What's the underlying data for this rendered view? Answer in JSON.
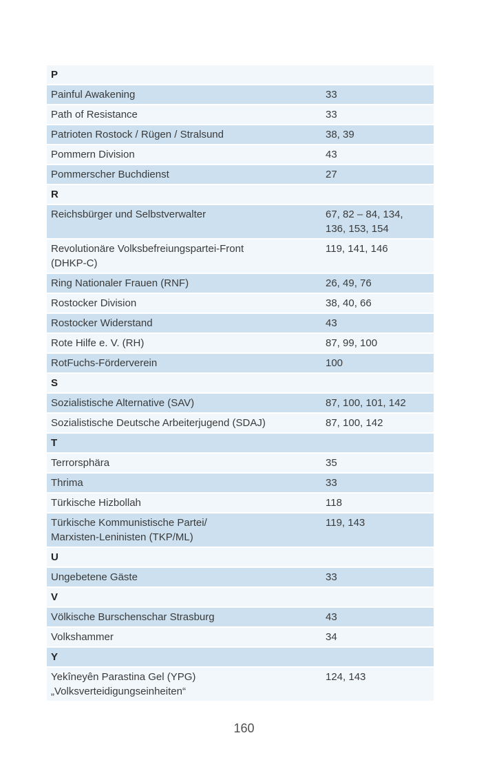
{
  "page": {
    "page_number": "160"
  },
  "colors": {
    "row_blue": "#cce0ef",
    "row_light": "#f2f7fb",
    "text": "#3a3a3a"
  },
  "index": {
    "sections": [
      {
        "letter": "P",
        "entries": [
          {
            "name": "Painful Awakening",
            "pages": "33"
          },
          {
            "name": "Path of Resistance",
            "pages": "33"
          },
          {
            "name": "Patrioten Rostock / Rügen / Stralsund",
            "pages": "38, 39"
          },
          {
            "name": "Pommern Division",
            "pages": "43"
          },
          {
            "name": "Pommerscher Buchdienst",
            "pages": "27"
          }
        ]
      },
      {
        "letter": "R",
        "entries": [
          {
            "name": "Reichsbürger und Selbstverwalter",
            "pages": "67, 82 – 84, 134,\n136, 153, 154"
          },
          {
            "name": "Revolutionäre Volksbefreiungspartei-Front\n(DHKP-C)",
            "pages": "119, 141, 146"
          },
          {
            "name": "Ring Nationaler Frauen (RNF)",
            "pages": "26, 49, 76"
          },
          {
            "name": "Rostocker Division",
            "pages": "38, 40, 66"
          },
          {
            "name": "Rostocker Widerstand",
            "pages": "43"
          },
          {
            "name": "Rote Hilfe e. V. (RH)",
            "pages": "87, 99, 100"
          },
          {
            "name": "RotFuchs-Förderverein",
            "pages": "100"
          }
        ]
      },
      {
        "letter": "S",
        "entries": [
          {
            "name": "Sozialistische Alternative (SAV)",
            "pages": "87, 100, 101, 142"
          },
          {
            "name": "Sozialistische Deutsche Arbeiterjugend (SDAJ)",
            "pages": "87, 100, 142"
          }
        ]
      },
      {
        "letter": "T",
        "entries": [
          {
            "name": "Terrorsphära",
            "pages": "35"
          },
          {
            "name": "Thrima",
            "pages": "33"
          },
          {
            "name": "Türkische Hizbollah",
            "pages": "118"
          },
          {
            "name": "Türkische Kommunistische Partei/\nMarxisten-Leninisten (TKP/ML)",
            "pages": "119, 143"
          }
        ]
      },
      {
        "letter": "U",
        "entries": [
          {
            "name": "Ungebetene Gäste",
            "pages": "33"
          }
        ]
      },
      {
        "letter": "V",
        "entries": [
          {
            "name": "Völkische Burschenschar Strasburg",
            "pages": "43"
          },
          {
            "name": "Volkshammer",
            "pages": "34"
          }
        ]
      },
      {
        "letter": "Y",
        "entries": [
          {
            "name": "Yekîneyên Parastina Gel (YPG)\n„Volksverteidigungseinheiten“",
            "pages": "124, 143"
          }
        ]
      }
    ]
  }
}
